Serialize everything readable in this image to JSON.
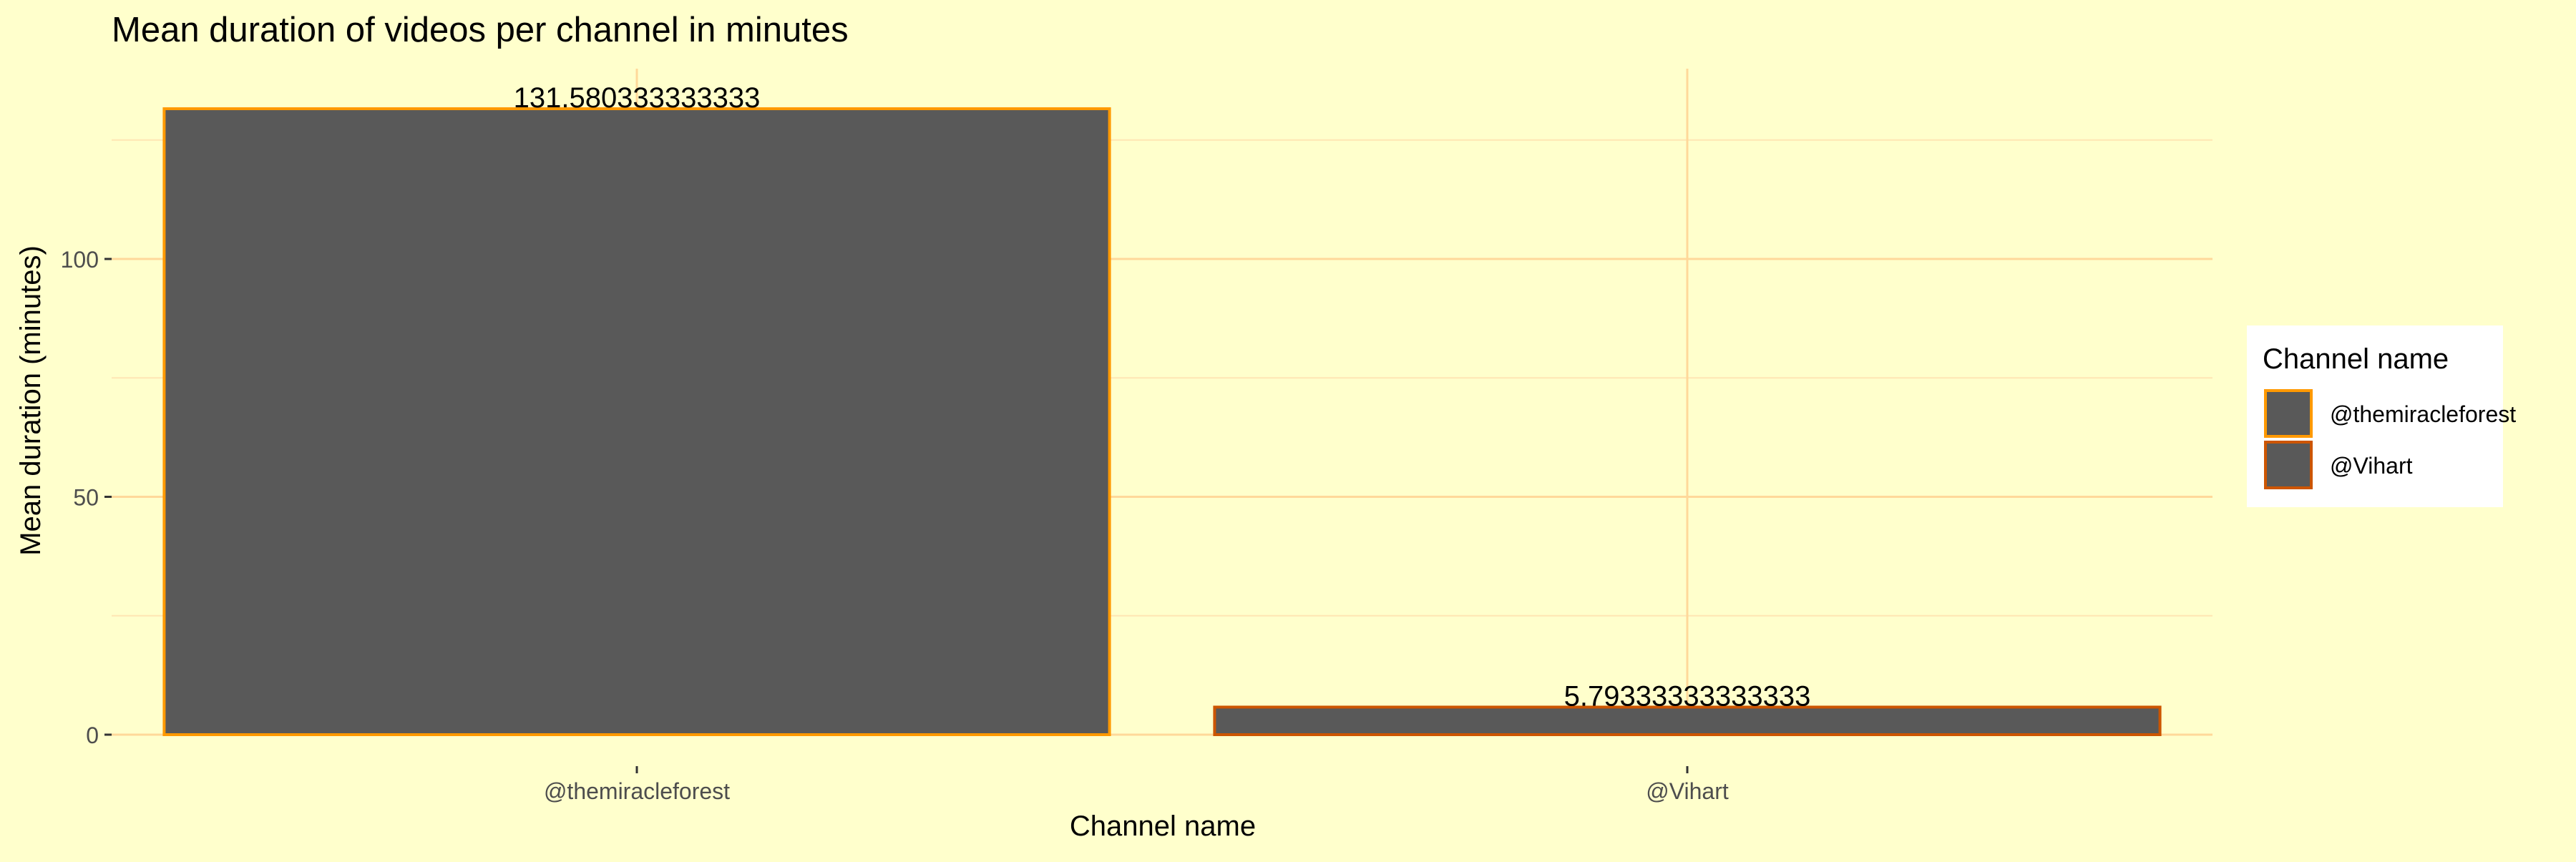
{
  "chart_data": {
    "type": "bar",
    "title": "Mean duration of videos per channel in minutes",
    "xlabel": "Channel name",
    "ylabel": "Mean duration (minutes)",
    "categories": [
      "@themiracleforest",
      "@Vihart"
    ],
    "values": [
      131.580333333333,
      5.79333333333333
    ],
    "value_labels": [
      "131.580333333333",
      "5.79333333333333"
    ],
    "bar_outline_colors": [
      "#FF9900",
      "#CC5500"
    ],
    "ylim": [
      0,
      140
    ],
    "yticks": [
      0,
      50,
      100
    ],
    "ytick_labels": [
      "0",
      "50",
      "100"
    ],
    "grid": true,
    "legend": {
      "title": "Channel name",
      "placement": "right",
      "entries": [
        "@themiracleforest",
        "@Vihart"
      ]
    },
    "colors": {
      "background": "#FFFFCC",
      "bar_fill": "#595959",
      "grid_major": "#FFD89A",
      "grid_minor": "#FFE6B3",
      "legend_background": "#FFFFFF",
      "text": "#000000",
      "tick_text": "#4D4D4D"
    }
  }
}
